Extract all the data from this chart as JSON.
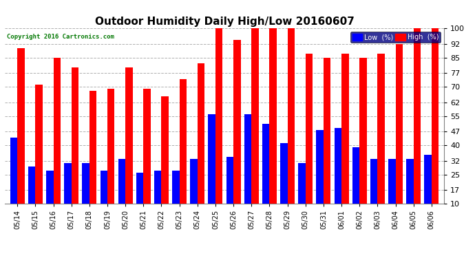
{
  "title": "Outdoor Humidity Daily High/Low 20160607",
  "copyright": "Copyright 2016 Cartronics.com",
  "categories": [
    "05/14",
    "05/15",
    "05/16",
    "05/17",
    "05/18",
    "05/19",
    "05/20",
    "05/21",
    "05/22",
    "05/23",
    "05/24",
    "05/25",
    "05/26",
    "05/27",
    "05/28",
    "05/29",
    "05/30",
    "05/31",
    "06/01",
    "06/02",
    "06/03",
    "06/04",
    "06/05",
    "06/06"
  ],
  "high": [
    90,
    71,
    85,
    80,
    68,
    69,
    80,
    69,
    65,
    74,
    82,
    100,
    94,
    100,
    100,
    100,
    87,
    85,
    87,
    85,
    87,
    92,
    100,
    100
  ],
  "low": [
    44,
    29,
    27,
    31,
    31,
    27,
    33,
    26,
    27,
    27,
    33,
    56,
    34,
    56,
    51,
    41,
    31,
    48,
    49,
    39,
    33,
    33,
    33,
    35
  ],
  "high_color": "#ff0000",
  "low_color": "#0000ff",
  "background_color": "#ffffff",
  "plot_background": "#ffffff",
  "grid_color": "#b0b0b0",
  "ylim_min": 10,
  "ylim_max": 100,
  "yticks": [
    10,
    17,
    25,
    32,
    40,
    47,
    55,
    62,
    70,
    77,
    85,
    92,
    100
  ],
  "legend_low_label": "Low  (%)",
  "legend_high_label": "High  (%)",
  "bar_width": 0.4,
  "title_fontsize": 11,
  "tick_fontsize": 8,
  "xtick_fontsize": 7
}
